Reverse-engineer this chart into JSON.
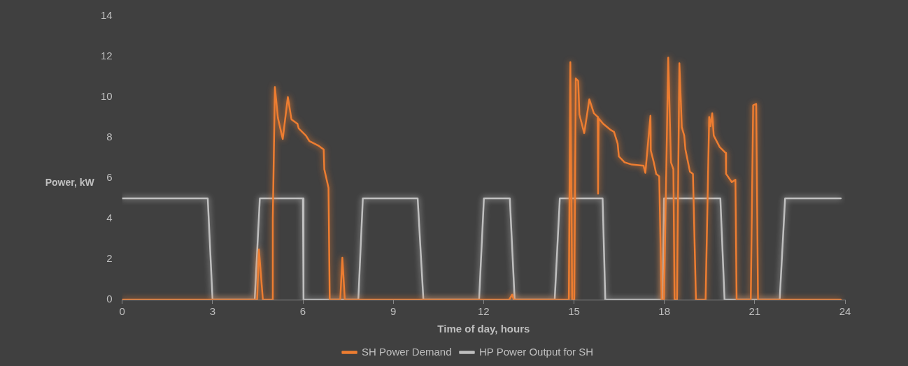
{
  "chart_data": {
    "type": "line",
    "xlabel": "Time of day, hours",
    "ylabel": "Power, kW",
    "xlim": [
      0,
      24
    ],
    "ylim": [
      0,
      14
    ],
    "xticks": [
      0,
      3,
      6,
      9,
      12,
      15,
      18,
      21,
      24
    ],
    "yticks": [
      0,
      2,
      4,
      6,
      8,
      10,
      12,
      14
    ],
    "grid": false,
    "legend": "bottom",
    "marker": "none",
    "line_style": "solid",
    "series": [
      {
        "name": "SH Power Demand",
        "color": "#ed7d31",
        "x": [
          0,
          4.48,
          4.54,
          4.67,
          4.99,
          5.0,
          5.07,
          5.17,
          5.33,
          5.5,
          5.62,
          5.82,
          5.86,
          6.1,
          6.22,
          6.53,
          6.69,
          6.71,
          6.85,
          6.89,
          7.24,
          7.31,
          7.39,
          12.85,
          12.95,
          13.0,
          14.83,
          14.88,
          14.94,
          15.01,
          15.06,
          15.14,
          15.18,
          15.34,
          15.51,
          15.66,
          15.79,
          15.8,
          15.82,
          15.97,
          16.21,
          16.33,
          16.45,
          16.49,
          16.68,
          16.92,
          17.31,
          17.37,
          17.54,
          17.55,
          17.65,
          17.73,
          17.83,
          17.91,
          17.99,
          18.13,
          18.22,
          18.3,
          18.34,
          18.42,
          18.5,
          18.58,
          18.66,
          18.7,
          18.85,
          18.95,
          19.05,
          19.37,
          19.49,
          19.53,
          19.59,
          19.64,
          19.84,
          20.04,
          20.05,
          20.24,
          20.36,
          20.4,
          20.87,
          20.95,
          21.05,
          21.11,
          23.86
        ],
        "values": [
          0,
          0,
          2.48,
          0,
          0,
          3.97,
          10.5,
          8.97,
          7.93,
          10.0,
          8.9,
          8.68,
          8.45,
          8.1,
          7.82,
          7.59,
          7.41,
          6.44,
          5.52,
          0,
          0,
          2.07,
          0,
          0,
          0.25,
          0,
          0,
          11.72,
          0,
          0,
          10.92,
          10.8,
          9.14,
          8.22,
          9.89,
          9.2,
          9.02,
          5.23,
          8.95,
          8.68,
          8.39,
          8.28,
          7.7,
          7.07,
          6.78,
          6.67,
          6.61,
          6.26,
          9.08,
          7.36,
          6.78,
          6.21,
          6.09,
          0,
          0,
          11.95,
          6.78,
          6.44,
          0,
          0,
          11.67,
          8.51,
          8.1,
          7.41,
          6.32,
          6.21,
          0,
          0,
          9.02,
          8.56,
          9.2,
          8.1,
          7.53,
          7.24,
          6.21,
          5.8,
          5.92,
          0,
          0,
          9.6,
          9.66,
          0,
          0
        ]
      },
      {
        "name": "HP Power Output for SH",
        "color": "#bfbfbf",
        "x": [
          0,
          2.84,
          3.0,
          4.4,
          4.57,
          6.0,
          6.02,
          7.84,
          7.99,
          9.81,
          10.0,
          11.85,
          12.01,
          12.87,
          13.03,
          14.36,
          14.53,
          15.95,
          16.04,
          17.94,
          17.99,
          19.86,
          20.0,
          21.83,
          22.01,
          23.86
        ],
        "values": [
          5,
          5,
          0,
          0,
          5,
          5,
          0,
          0,
          5,
          5,
          0,
          0,
          5,
          5,
          0,
          0,
          5,
          5,
          0,
          0,
          5,
          5,
          0,
          0,
          5,
          5
        ]
      }
    ]
  }
}
